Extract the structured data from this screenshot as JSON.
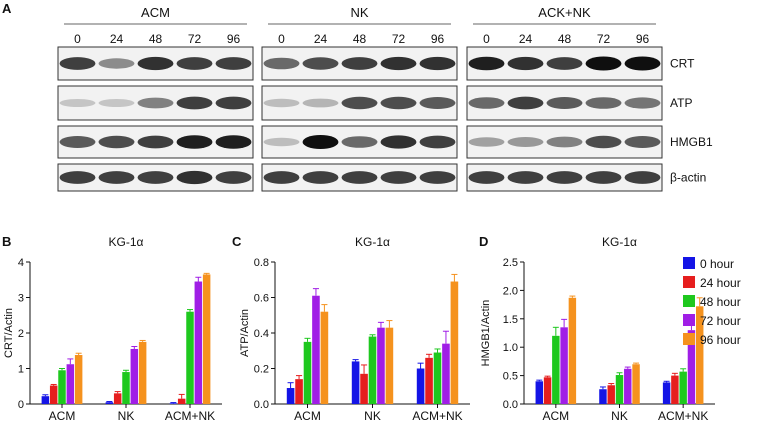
{
  "panel_a": {
    "letter": "A",
    "groups": [
      {
        "name": "ACM",
        "lanes": [
          "0",
          "24",
          "48",
          "72",
          "96"
        ]
      },
      {
        "name": "NK",
        "lanes": [
          "0",
          "24",
          "48",
          "72",
          "96"
        ]
      },
      {
        "name": "ACK+NK",
        "lanes": [
          "0",
          "24",
          "48",
          "72",
          "96"
        ]
      }
    ],
    "rows": [
      "CRT",
      "ATP",
      "HMGB1",
      "β-actin"
    ],
    "band_intensity": [
      [
        [
          0.85,
          0.55,
          0.9,
          0.85,
          0.85
        ],
        [
          0.7,
          0.8,
          0.85,
          0.9,
          0.9
        ],
        [
          0.95,
          0.9,
          0.85,
          1.0,
          1.0
        ]
      ],
      [
        [
          0.25,
          0.25,
          0.6,
          0.85,
          0.85
        ],
        [
          0.3,
          0.35,
          0.8,
          0.8,
          0.75
        ],
        [
          0.7,
          0.85,
          0.75,
          0.7,
          0.65
        ]
      ],
      [
        [
          0.75,
          0.8,
          0.85,
          0.95,
          0.95
        ],
        [
          0.3,
          1.0,
          0.7,
          0.9,
          0.85
        ],
        [
          0.45,
          0.5,
          0.6,
          0.8,
          0.75
        ]
      ],
      [
        [
          0.85,
          0.85,
          0.85,
          0.9,
          0.85
        ],
        [
          0.85,
          0.85,
          0.85,
          0.85,
          0.85
        ],
        [
          0.85,
          0.85,
          0.85,
          0.85,
          0.85
        ]
      ]
    ]
  },
  "legend": {
    "entries": [
      "0 hour",
      "24 hour",
      "48 hour",
      "72 hour",
      "96 hour"
    ],
    "colors": [
      "#1414e6",
      "#e61e1e",
      "#1ec81e",
      "#a01ee6",
      "#f5921e"
    ]
  },
  "chart_data": [
    {
      "letter": "B",
      "type": "bar",
      "title": "KG-1α",
      "xlabel": "",
      "ylabel": "CRT/Actin",
      "ylim": [
        0,
        4
      ],
      "yticks": [
        "0",
        "1",
        "2",
        "3",
        "4"
      ],
      "categories": [
        "ACM",
        "NK",
        "ACM+NK"
      ],
      "series": [
        {
          "name": "0 hour",
          "values": [
            0.22,
            0.05,
            0.02
          ],
          "errors": [
            0.04,
            0.02,
            0.02
          ]
        },
        {
          "name": "24 hour",
          "values": [
            0.52,
            0.3,
            0.15
          ],
          "errors": [
            0.03,
            0.05,
            0.12
          ]
        },
        {
          "name": "48 hour",
          "values": [
            0.95,
            0.9,
            2.6
          ],
          "errors": [
            0.05,
            0.05,
            0.06
          ]
        },
        {
          "name": "72 hour",
          "values": [
            1.12,
            1.55,
            3.45
          ],
          "errors": [
            0.15,
            0.07,
            0.12
          ]
        },
        {
          "name": "96 hour",
          "values": [
            1.38,
            1.75,
            3.65
          ],
          "errors": [
            0.05,
            0.04,
            0.03
          ]
        }
      ]
    },
    {
      "letter": "C",
      "type": "bar",
      "title": "KG-1α",
      "xlabel": "",
      "ylabel": "ATP/Actin",
      "ylim": [
        0,
        0.8
      ],
      "yticks": [
        "0.0",
        "0.2",
        "0.4",
        "0.6",
        "0.8"
      ],
      "categories": [
        "ACM",
        "NK",
        "ACM+NK"
      ],
      "series": [
        {
          "name": "0 hour",
          "values": [
            0.09,
            0.24,
            0.2
          ],
          "errors": [
            0.03,
            0.01,
            0.03
          ]
        },
        {
          "name": "24 hour",
          "values": [
            0.14,
            0.17,
            0.26
          ],
          "errors": [
            0.02,
            0.05,
            0.02
          ]
        },
        {
          "name": "48 hour",
          "values": [
            0.35,
            0.38,
            0.29
          ],
          "errors": [
            0.02,
            0.01,
            0.02
          ]
        },
        {
          "name": "72 hour",
          "values": [
            0.61,
            0.43,
            0.34
          ],
          "errors": [
            0.04,
            0.03,
            0.07
          ]
        },
        {
          "name": "96 hour",
          "values": [
            0.52,
            0.43,
            0.69
          ],
          "errors": [
            0.04,
            0.04,
            0.04
          ]
        }
      ]
    },
    {
      "letter": "D",
      "type": "bar",
      "title": "KG-1α",
      "xlabel": "",
      "ylabel": "HMGB1/Actin",
      "ylim": [
        0,
        2.5
      ],
      "yticks": [
        "0.0",
        "0.5",
        "1.0",
        "1.5",
        "2.0",
        "2.5"
      ],
      "categories": [
        "ACM",
        "NK",
        "ACM+NK"
      ],
      "series": [
        {
          "name": "0 hour",
          "values": [
            0.4,
            0.26,
            0.38
          ],
          "errors": [
            0.02,
            0.04,
            0.02
          ]
        },
        {
          "name": "24 hour",
          "values": [
            0.47,
            0.33,
            0.5
          ],
          "errors": [
            0.02,
            0.03,
            0.04
          ]
        },
        {
          "name": "48 hour",
          "values": [
            1.2,
            0.51,
            0.57
          ],
          "errors": [
            0.15,
            0.04,
            0.05
          ]
        },
        {
          "name": "72 hour",
          "values": [
            1.35,
            0.62,
            1.3
          ],
          "errors": [
            0.14,
            0.03,
            0.2
          ]
        },
        {
          "name": "96 hour",
          "values": [
            1.87,
            0.7,
            1.72
          ],
          "errors": [
            0.03,
            0.02,
            0.15
          ]
        }
      ]
    }
  ]
}
